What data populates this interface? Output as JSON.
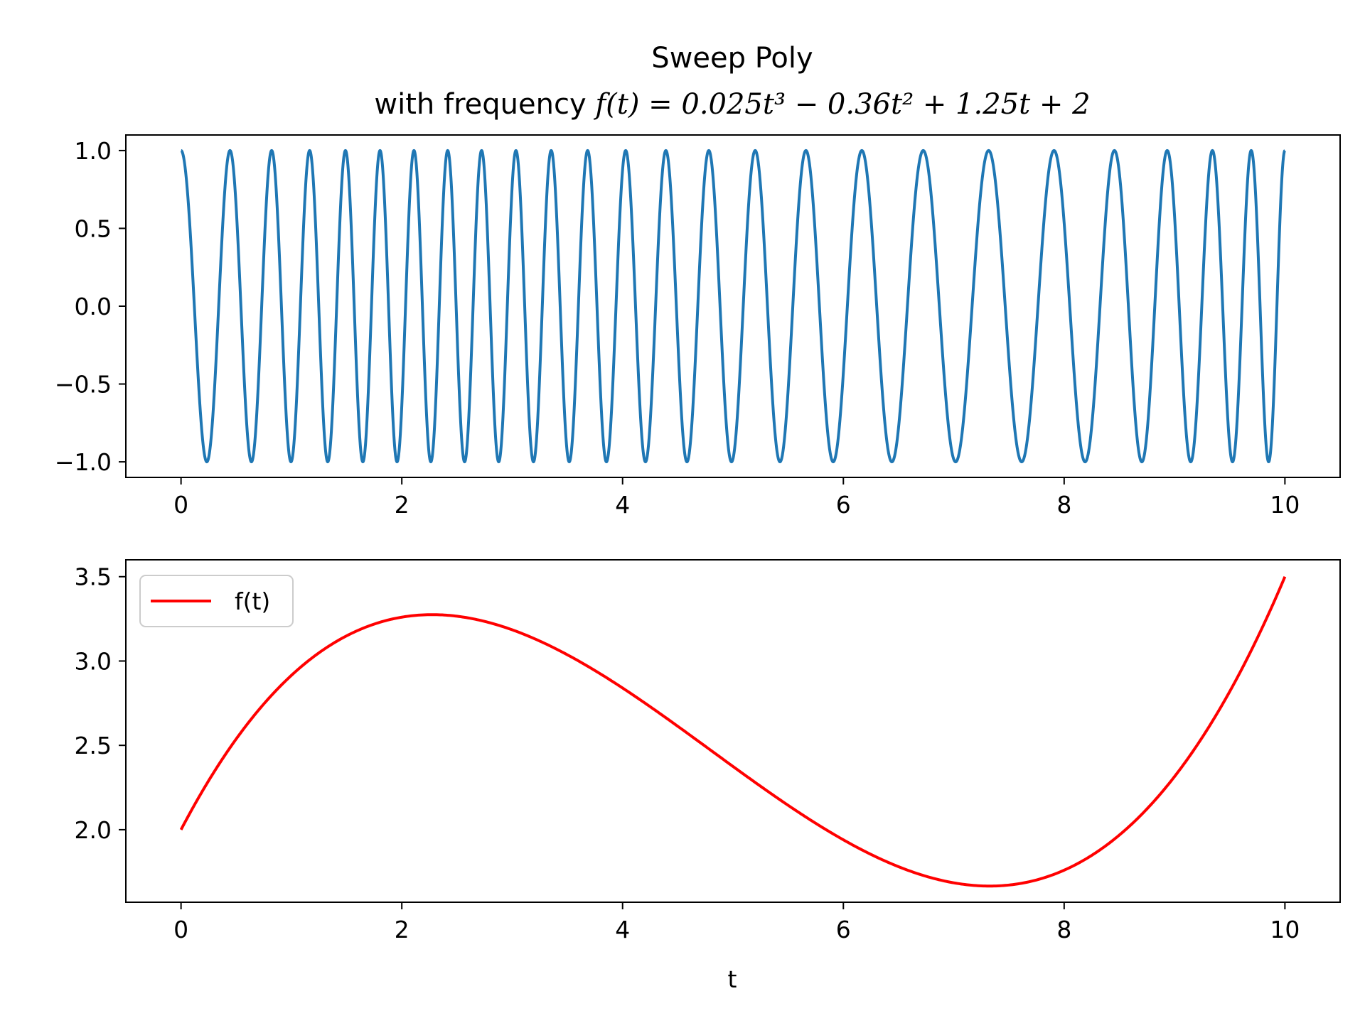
{
  "chart_data": [
    {
      "type": "line",
      "title_line1": "Sweep Poly",
      "title_prefix": "with frequency ",
      "title_formula": "f(t) = 0.025t³ − 0.36t² + 1.25t + 2",
      "xlabel": "",
      "ylabel": "",
      "xlim": [
        -0.5,
        10.5
      ],
      "ylim": [
        -1.1,
        1.1
      ],
      "xticks": [
        0,
        2,
        4,
        6,
        8,
        10
      ],
      "xtick_labels": [
        "0",
        "2",
        "4",
        "6",
        "8",
        "10"
      ],
      "yticks": [
        -1.0,
        -0.5,
        0.0,
        0.5,
        1.0
      ],
      "ytick_labels": [
        "−1.0",
        "−0.5",
        "0.0",
        "0.5",
        "1.0"
      ],
      "grid": false,
      "series": [
        {
          "signal": "cos(2π·(0.025/4·t⁴ − 0.36/3·t³ + 1.25/2·t² + 2·t))",
          "poly": [
            0.025,
            -0.36,
            1.25,
            2
          ],
          "t_range": [
            0,
            10
          ],
          "color": "#1f77b4"
        }
      ]
    },
    {
      "type": "line",
      "xlabel": "t",
      "ylabel": "",
      "xlim": [
        -0.5,
        10.5
      ],
      "ylim": [
        1.57,
        3.6
      ],
      "xticks": [
        0,
        2,
        4,
        6,
        8,
        10
      ],
      "xtick_labels": [
        "0",
        "2",
        "4",
        "6",
        "8",
        "10"
      ],
      "yticks": [
        2.0,
        2.5,
        3.0,
        3.5
      ],
      "ytick_labels": [
        "2.0",
        "2.5",
        "3.0",
        "3.5"
      ],
      "grid": false,
      "legend": {
        "placement": "upper-left",
        "entries": [
          "f(t)"
        ]
      },
      "series": [
        {
          "name": "f(t)",
          "poly": [
            0.025,
            -0.36,
            1.25,
            2
          ],
          "t_range": [
            0,
            10
          ],
          "color": "#ff0000"
        }
      ]
    }
  ]
}
